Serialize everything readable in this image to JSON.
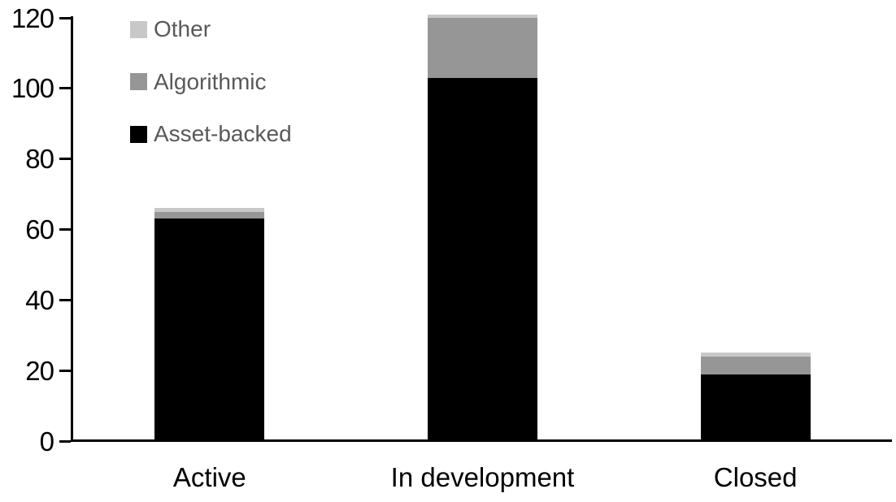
{
  "chart_data": {
    "type": "bar",
    "stacked": true,
    "title": "",
    "xlabel": "",
    "ylabel": "",
    "categories": [
      "Active",
      "In development",
      "Closed"
    ],
    "series": [
      {
        "name": "Asset-backed",
        "color": "#000000",
        "values": [
          63,
          103,
          19
        ]
      },
      {
        "name": "Algorithmic",
        "color": "#969696",
        "values": [
          2,
          17,
          5
        ]
      },
      {
        "name": "Other",
        "color": "#c8c8c8",
        "values": [
          1,
          1,
          1
        ]
      }
    ],
    "stack_totals": [
      66,
      121,
      25
    ],
    "ylim": [
      0,
      120
    ],
    "yticks": [
      0,
      20,
      40,
      60,
      80,
      100,
      120
    ],
    "grid": false,
    "legend": {
      "position": "top-left",
      "order": [
        "Other",
        "Algorithmic",
        "Asset-backed"
      ]
    }
  },
  "colors": {
    "background": "#ffffff",
    "axis": "#000000",
    "tick_label": "#000000",
    "category_label": "#000000",
    "legend_text": "#595959"
  }
}
